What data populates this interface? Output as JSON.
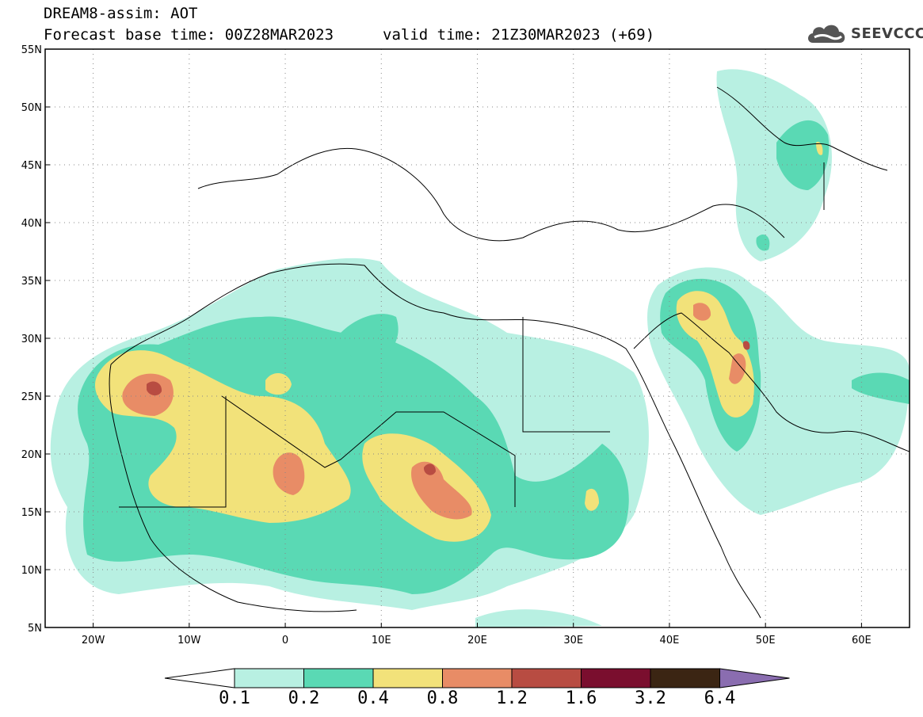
{
  "header": {
    "title": "DREAM8-assim: AOT",
    "base_time": "Forecast base time: 00Z28MAR2023",
    "valid_time": "valid time: 21Z30MAR2023 (+69)",
    "logo_text": "SEEVCCC"
  },
  "map": {
    "lat_range": [
      5,
      55
    ],
    "lon_range": [
      -25,
      65
    ],
    "lat_ticks": [
      "5N",
      "10N",
      "15N",
      "20N",
      "25N",
      "30N",
      "35N",
      "40N",
      "45N",
      "50N",
      "55N"
    ],
    "lon_ticks": [
      "20W",
      "10W",
      "0",
      "10E",
      "20E",
      "30E",
      "40E",
      "50E",
      "60E"
    ],
    "gridlines": "dotted"
  },
  "colorbar": {
    "labels": [
      "0.1",
      "0.2",
      "0.4",
      "0.8",
      "1.2",
      "1.6",
      "3.2",
      "6.4"
    ],
    "colors": [
      "#b8f0e2",
      "#5ad9b4",
      "#f2e27a",
      "#e88c66",
      "#b84c42",
      "#7a0e2e",
      "#3b2513",
      "#8a6db0"
    ]
  }
}
